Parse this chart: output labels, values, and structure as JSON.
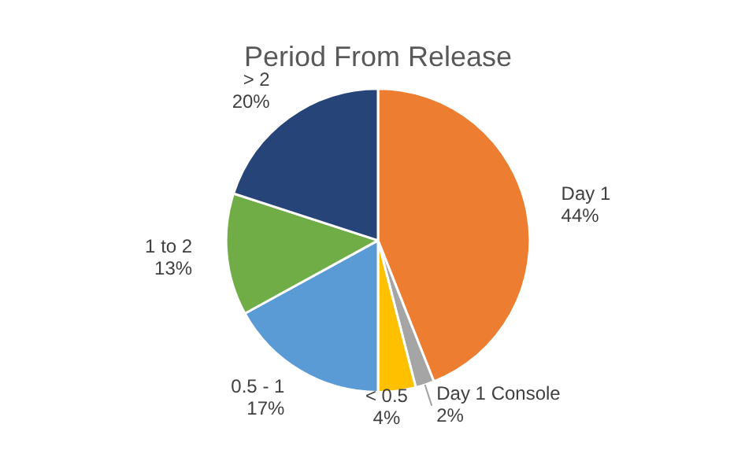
{
  "chart_data": {
    "type": "pie",
    "title": "Period From Release",
    "categories": [
      "Day 1",
      "Day 1 Console",
      "< 0.5",
      "0.5 - 1",
      "1 to 2",
      "> 2"
    ],
    "values": [
      44,
      2,
      4,
      17,
      13,
      20
    ],
    "colors": [
      "#ed7d31",
      "#a5a5a5",
      "#ffc000",
      "#5b9bd5",
      "#70ad47",
      "#264478"
    ],
    "value_labels": [
      "44%",
      "2%",
      "4%",
      "17%",
      "13%",
      "20%"
    ],
    "legend": false
  }
}
